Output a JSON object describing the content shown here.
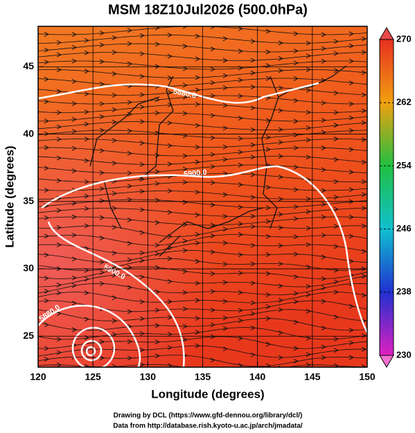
{
  "map": {
    "title": "MSM 18Z10Jul2026 (500.0hPa)",
    "x_label": "Longitude (degrees)",
    "y_label": "Latitude  (degrees)",
    "xlim": [
      120,
      150
    ],
    "ylim": [
      22.7,
      48
    ],
    "xticks": [
      120,
      125,
      130,
      135,
      140,
      145,
      150
    ],
    "yticks": [
      25,
      30,
      35,
      40,
      45
    ],
    "grid": true,
    "contour_labels": [
      "5880.0",
      "5900.0",
      "5900.0",
      "5880.0"
    ],
    "colorbar": {
      "lim": [
        230,
        270
      ],
      "ticks": [
        230,
        238,
        246,
        254,
        262,
        270
      ],
      "colors": [
        "#e020c0",
        "#2030d0",
        "#10c0d0",
        "#20c040",
        "#f0a010",
        "#e83020"
      ]
    },
    "credits": [
      "Drawing by DCL (https://www.gfd-dennou.org/library/dcl/)",
      "Data from http://database.rish.kyoto-u.ac.jp/arch/jmadata/"
    ]
  }
}
